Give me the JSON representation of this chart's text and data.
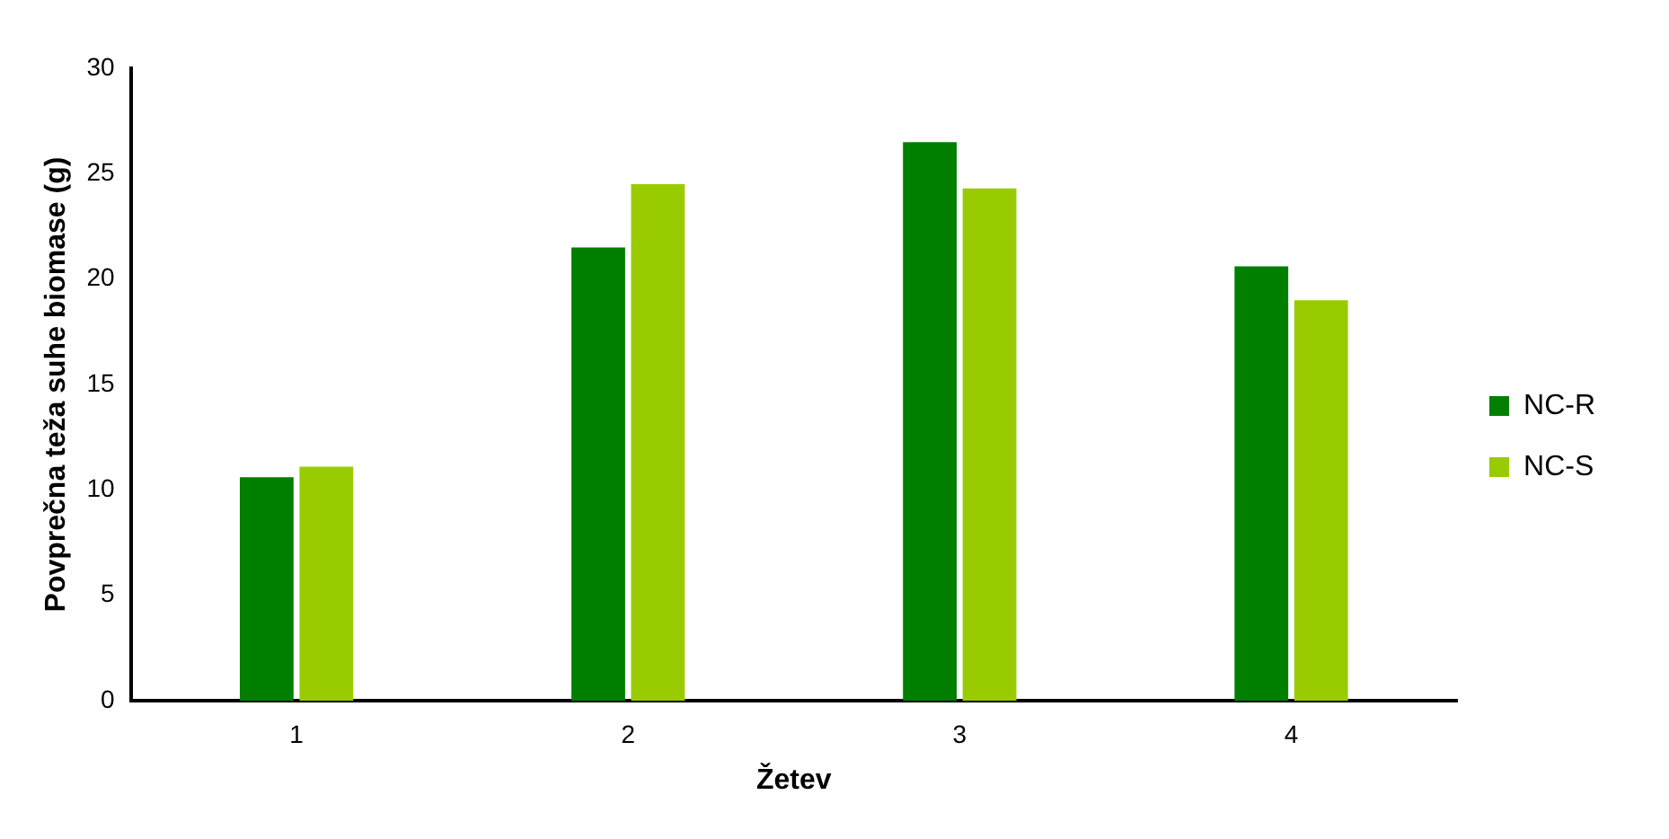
{
  "chart_data": {
    "type": "bar",
    "xlabel": "Žetev",
    "ylabel": "Povprečna teža suhe biomase (g)",
    "categories": [
      "1",
      "2",
      "3",
      "4"
    ],
    "series": [
      {
        "name": "NC-R",
        "color": "#007f00",
        "values": [
          10.6,
          21.5,
          26.5,
          20.6
        ]
      },
      {
        "name": "NC-S",
        "color": "#99cc00",
        "values": [
          11.1,
          24.5,
          24.3,
          19.0
        ]
      }
    ],
    "ylim": [
      0,
      30
    ],
    "yticks": [
      0,
      5,
      10,
      15,
      20,
      25,
      30
    ],
    "grid": false,
    "legend": "right"
  }
}
